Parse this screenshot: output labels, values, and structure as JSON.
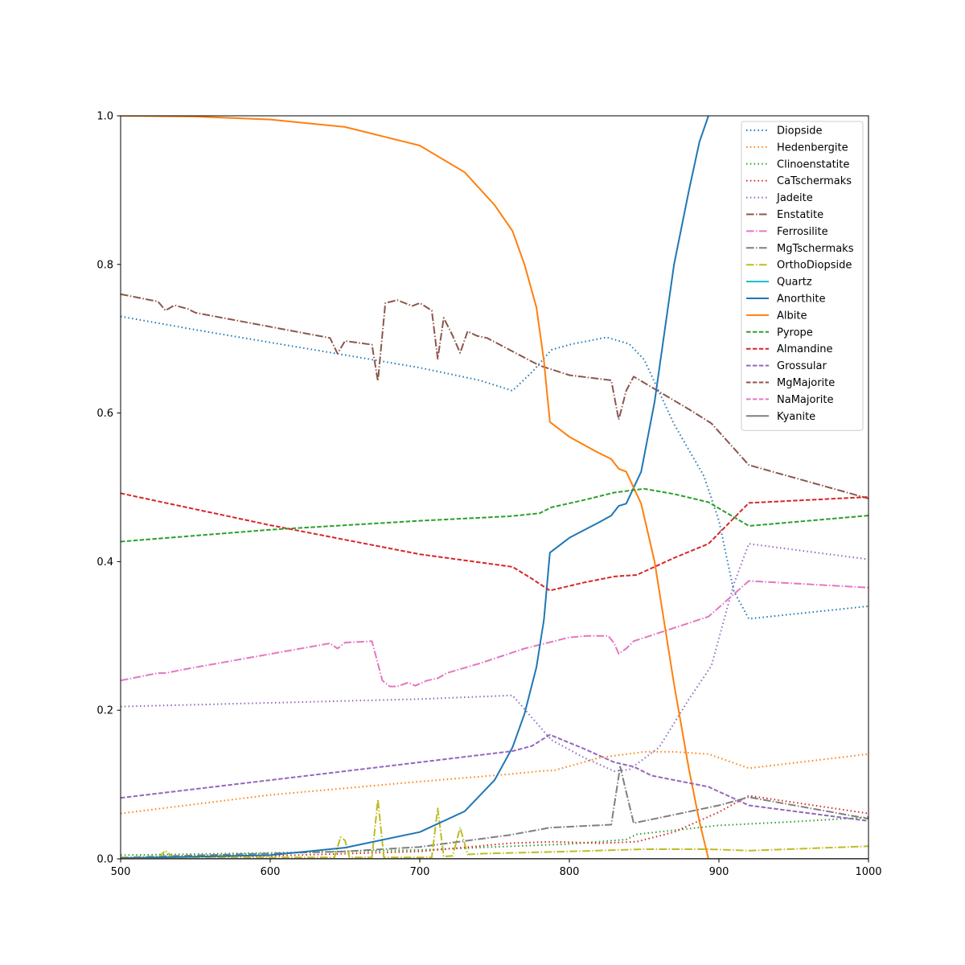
{
  "chart_data": {
    "type": "line",
    "title": "",
    "xlabel": "",
    "ylabel": "",
    "xlim": [
      500,
      1000
    ],
    "ylim": [
      0,
      1
    ],
    "grid": false,
    "legend_position": "top-right",
    "x_ticks": [
      "500",
      "600",
      "700",
      "800",
      "900",
      "1000"
    ],
    "y_ticks": [
      "0.0",
      "0.2",
      "0.4",
      "0.6",
      "0.8",
      "1.0"
    ],
    "series": [
      {
        "name": "Diopside",
        "color": "#1f77b4",
        "style": "dotted",
        "points": [
          [
            500,
            0.73
          ],
          [
            550,
            0.712
          ],
          [
            600,
            0.695
          ],
          [
            650,
            0.678
          ],
          [
            700,
            0.661
          ],
          [
            740,
            0.644
          ],
          [
            762,
            0.63
          ],
          [
            775,
            0.655
          ],
          [
            788,
            0.685
          ],
          [
            800,
            0.692
          ],
          [
            825,
            0.702
          ],
          [
            840,
            0.693
          ],
          [
            850,
            0.672
          ],
          [
            870,
            0.585
          ],
          [
            890,
            0.515
          ],
          [
            900,
            0.455
          ],
          [
            910,
            0.36
          ],
          [
            920,
            0.323
          ],
          [
            1000,
            0.34
          ]
        ]
      },
      {
        "name": "Hedenbergite",
        "color": "#ff7f0e",
        "style": "dotted",
        "points": [
          [
            500,
            0.061
          ],
          [
            600,
            0.086
          ],
          [
            700,
            0.104
          ],
          [
            760,
            0.114
          ],
          [
            780,
            0.118
          ],
          [
            790,
            0.119
          ],
          [
            820,
            0.136
          ],
          [
            850,
            0.144
          ],
          [
            870,
            0.144
          ],
          [
            893,
            0.141
          ],
          [
            920,
            0.122
          ],
          [
            1000,
            0.141
          ]
        ]
      },
      {
        "name": "Clinoenstatite",
        "color": "#2ca02c",
        "style": "dotted",
        "points": [
          [
            500,
            0.005
          ],
          [
            600,
            0.008
          ],
          [
            700,
            0.012
          ],
          [
            800,
            0.02
          ],
          [
            838,
            0.026
          ],
          [
            845,
            0.033
          ],
          [
            900,
            0.045
          ],
          [
            950,
            0.05
          ],
          [
            1000,
            0.056
          ]
        ]
      },
      {
        "name": "CaTschermaks",
        "color": "#d62728",
        "style": "dotted",
        "points": [
          [
            500,
            0.001
          ],
          [
            600,
            0.004
          ],
          [
            700,
            0.01
          ],
          [
            760,
            0.021
          ],
          [
            790,
            0.023
          ],
          [
            820,
            0.021
          ],
          [
            845,
            0.023
          ],
          [
            870,
            0.036
          ],
          [
            900,
            0.063
          ],
          [
            920,
            0.085
          ],
          [
            1000,
            0.061
          ]
        ]
      },
      {
        "name": "Jadeite",
        "color": "#9467bd",
        "style": "dotted",
        "points": [
          [
            500,
            0.205
          ],
          [
            600,
            0.21
          ],
          [
            700,
            0.215
          ],
          [
            762,
            0.22
          ],
          [
            788,
            0.16
          ],
          [
            810,
            0.136
          ],
          [
            830,
            0.118
          ],
          [
            840,
            0.12
          ],
          [
            860,
            0.15
          ],
          [
            880,
            0.215
          ],
          [
            895,
            0.26
          ],
          [
            910,
            0.37
          ],
          [
            920,
            0.424
          ],
          [
            1000,
            0.403
          ]
        ]
      },
      {
        "name": "Enstatite",
        "color": "#8c564b",
        "style": "dashdot",
        "points": [
          [
            500,
            0.76
          ],
          [
            525,
            0.75
          ],
          [
            530,
            0.738
          ],
          [
            536,
            0.745
          ],
          [
            545,
            0.74
          ],
          [
            550,
            0.735
          ],
          [
            640,
            0.701
          ],
          [
            645,
            0.68
          ],
          [
            650,
            0.697
          ],
          [
            668,
            0.692
          ],
          [
            672,
            0.643
          ],
          [
            677,
            0.748
          ],
          [
            685,
            0.752
          ],
          [
            695,
            0.744
          ],
          [
            700,
            0.748
          ],
          [
            708,
            0.738
          ],
          [
            712,
            0.673
          ],
          [
            716,
            0.728
          ],
          [
            722,
            0.704
          ],
          [
            727,
            0.681
          ],
          [
            732,
            0.71
          ],
          [
            738,
            0.704
          ],
          [
            745,
            0.701
          ],
          [
            780,
            0.664
          ],
          [
            800,
            0.651
          ],
          [
            820,
            0.646
          ],
          [
            828,
            0.644
          ],
          [
            833,
            0.591
          ],
          [
            838,
            0.63
          ],
          [
            843,
            0.649
          ],
          [
            880,
            0.605
          ],
          [
            895,
            0.586
          ],
          [
            920,
            0.53
          ],
          [
            1000,
            0.485
          ]
        ]
      },
      {
        "name": "Ferrosilite",
        "color": "#e377c2",
        "style": "dashdot",
        "points": [
          [
            500,
            0.24
          ],
          [
            525,
            0.25
          ],
          [
            530,
            0.25
          ],
          [
            545,
            0.256
          ],
          [
            640,
            0.29
          ],
          [
            645,
            0.283
          ],
          [
            650,
            0.291
          ],
          [
            668,
            0.293
          ],
          [
            675,
            0.24
          ],
          [
            680,
            0.232
          ],
          [
            685,
            0.232
          ],
          [
            692,
            0.237
          ],
          [
            697,
            0.233
          ],
          [
            705,
            0.24
          ],
          [
            712,
            0.243
          ],
          [
            718,
            0.25
          ],
          [
            740,
            0.263
          ],
          [
            770,
            0.283
          ],
          [
            800,
            0.298
          ],
          [
            812,
            0.3
          ],
          [
            826,
            0.3
          ],
          [
            830,
            0.29
          ],
          [
            833,
            0.276
          ],
          [
            838,
            0.283
          ],
          [
            843,
            0.293
          ],
          [
            893,
            0.326
          ],
          [
            920,
            0.374
          ],
          [
            1000,
            0.365
          ]
        ]
      },
      {
        "name": "MgTschermaks",
        "color": "#7f7f7f",
        "style": "dashdot",
        "points": [
          [
            500,
            0.002
          ],
          [
            650,
            0.01
          ],
          [
            700,
            0.016
          ],
          [
            760,
            0.032
          ],
          [
            787,
            0.042
          ],
          [
            828,
            0.046
          ],
          [
            834,
            0.124
          ],
          [
            843,
            0.048
          ],
          [
            900,
            0.072
          ],
          [
            920,
            0.083
          ],
          [
            1000,
            0.054
          ]
        ]
      },
      {
        "name": "OrthoDiopside",
        "color": "#bcbd22",
        "style": "dashdot",
        "points": [
          [
            500,
            0.002
          ],
          [
            525,
            0.002
          ],
          [
            530,
            0.011
          ],
          [
            535,
            0.002
          ],
          [
            643,
            0.002
          ],
          [
            647,
            0.029
          ],
          [
            650,
            0.025
          ],
          [
            653,
            0.002
          ],
          [
            668,
            0.002
          ],
          [
            672,
            0.08
          ],
          [
            676,
            0.002
          ],
          [
            708,
            0.002
          ],
          [
            712,
            0.068
          ],
          [
            716,
            0.003
          ],
          [
            722,
            0.004
          ],
          [
            727,
            0.042
          ],
          [
            732,
            0.006
          ],
          [
            742,
            0.007
          ],
          [
            800,
            0.01
          ],
          [
            850,
            0.013
          ],
          [
            893,
            0.013
          ],
          [
            920,
            0.011
          ],
          [
            1000,
            0.017
          ]
        ]
      },
      {
        "name": "Quartz",
        "color": "#17becf",
        "style": "solid",
        "points": [
          [
            500,
            0.0
          ],
          [
            1000,
            0.0
          ]
        ]
      },
      {
        "name": "Anorthite",
        "color": "#1f77b4",
        "style": "solid",
        "points": [
          [
            500,
            0.001
          ],
          [
            600,
            0.005
          ],
          [
            650,
            0.015
          ],
          [
            700,
            0.036
          ],
          [
            730,
            0.064
          ],
          [
            750,
            0.106
          ],
          [
            762,
            0.15
          ],
          [
            770,
            0.195
          ],
          [
            778,
            0.258
          ],
          [
            783,
            0.322
          ],
          [
            787,
            0.412
          ],
          [
            800,
            0.432
          ],
          [
            820,
            0.453
          ],
          [
            828,
            0.462
          ],
          [
            833,
            0.475
          ],
          [
            838,
            0.478
          ],
          [
            848,
            0.521
          ],
          [
            857,
            0.615
          ],
          [
            870,
            0.8
          ],
          [
            880,
            0.9
          ],
          [
            887,
            0.965
          ],
          [
            893,
            1.0
          ]
        ]
      },
      {
        "name": "Albite",
        "color": "#ff7f0e",
        "style": "solid",
        "points": [
          [
            500,
            1.0
          ],
          [
            550,
            0.999
          ],
          [
            600,
            0.995
          ],
          [
            650,
            0.985
          ],
          [
            700,
            0.96
          ],
          [
            730,
            0.924
          ],
          [
            750,
            0.88
          ],
          [
            762,
            0.845
          ],
          [
            770,
            0.8
          ],
          [
            778,
            0.742
          ],
          [
            783,
            0.67
          ],
          [
            787,
            0.588
          ],
          [
            800,
            0.568
          ],
          [
            818,
            0.548
          ],
          [
            828,
            0.538
          ],
          [
            833,
            0.525
          ],
          [
            838,
            0.521
          ],
          [
            848,
            0.478
          ],
          [
            857,
            0.4
          ],
          [
            870,
            0.235
          ],
          [
            880,
            0.12
          ],
          [
            887,
            0.05
          ],
          [
            893,
            0.0
          ],
          [
            1000,
            0.0
          ]
        ]
      },
      {
        "name": "Pyrope",
        "color": "#2ca02c",
        "style": "dashed",
        "points": [
          [
            500,
            0.427
          ],
          [
            600,
            0.443
          ],
          [
            700,
            0.455
          ],
          [
            760,
            0.461
          ],
          [
            780,
            0.465
          ],
          [
            788,
            0.473
          ],
          [
            810,
            0.483
          ],
          [
            830,
            0.493
          ],
          [
            850,
            0.498
          ],
          [
            870,
            0.491
          ],
          [
            893,
            0.48
          ],
          [
            920,
            0.448
          ],
          [
            1000,
            0.462
          ]
        ]
      },
      {
        "name": "Almandine",
        "color": "#d62728",
        "style": "dashed",
        "points": [
          [
            500,
            0.492
          ],
          [
            600,
            0.449
          ],
          [
            700,
            0.41
          ],
          [
            762,
            0.393
          ],
          [
            775,
            0.377
          ],
          [
            787,
            0.361
          ],
          [
            810,
            0.372
          ],
          [
            830,
            0.38
          ],
          [
            845,
            0.382
          ],
          [
            870,
            0.405
          ],
          [
            893,
            0.424
          ],
          [
            920,
            0.479
          ],
          [
            1000,
            0.487
          ]
        ]
      },
      {
        "name": "Grossular",
        "color": "#9467bd",
        "style": "dashed",
        "points": [
          [
            500,
            0.082
          ],
          [
            600,
            0.106
          ],
          [
            700,
            0.13
          ],
          [
            762,
            0.145
          ],
          [
            775,
            0.152
          ],
          [
            787,
            0.167
          ],
          [
            810,
            0.148
          ],
          [
            830,
            0.13
          ],
          [
            843,
            0.124
          ],
          [
            855,
            0.112
          ],
          [
            893,
            0.097
          ],
          [
            920,
            0.072
          ],
          [
            1000,
            0.051
          ]
        ]
      },
      {
        "name": "MgMajorite",
        "color": "#8c564b",
        "style": "dashed",
        "points": [
          [
            500,
            0.0
          ],
          [
            1000,
            0.0
          ]
        ]
      },
      {
        "name": "NaMajorite",
        "color": "#e377c2",
        "style": "dashed",
        "points": [
          [
            500,
            0.0
          ],
          [
            1000,
            0.0
          ]
        ]
      },
      {
        "name": "Kyanite",
        "color": "#7f7f7f",
        "style": "solid",
        "points": [
          [
            500,
            0.0
          ],
          [
            1000,
            0.0
          ]
        ]
      }
    ]
  }
}
